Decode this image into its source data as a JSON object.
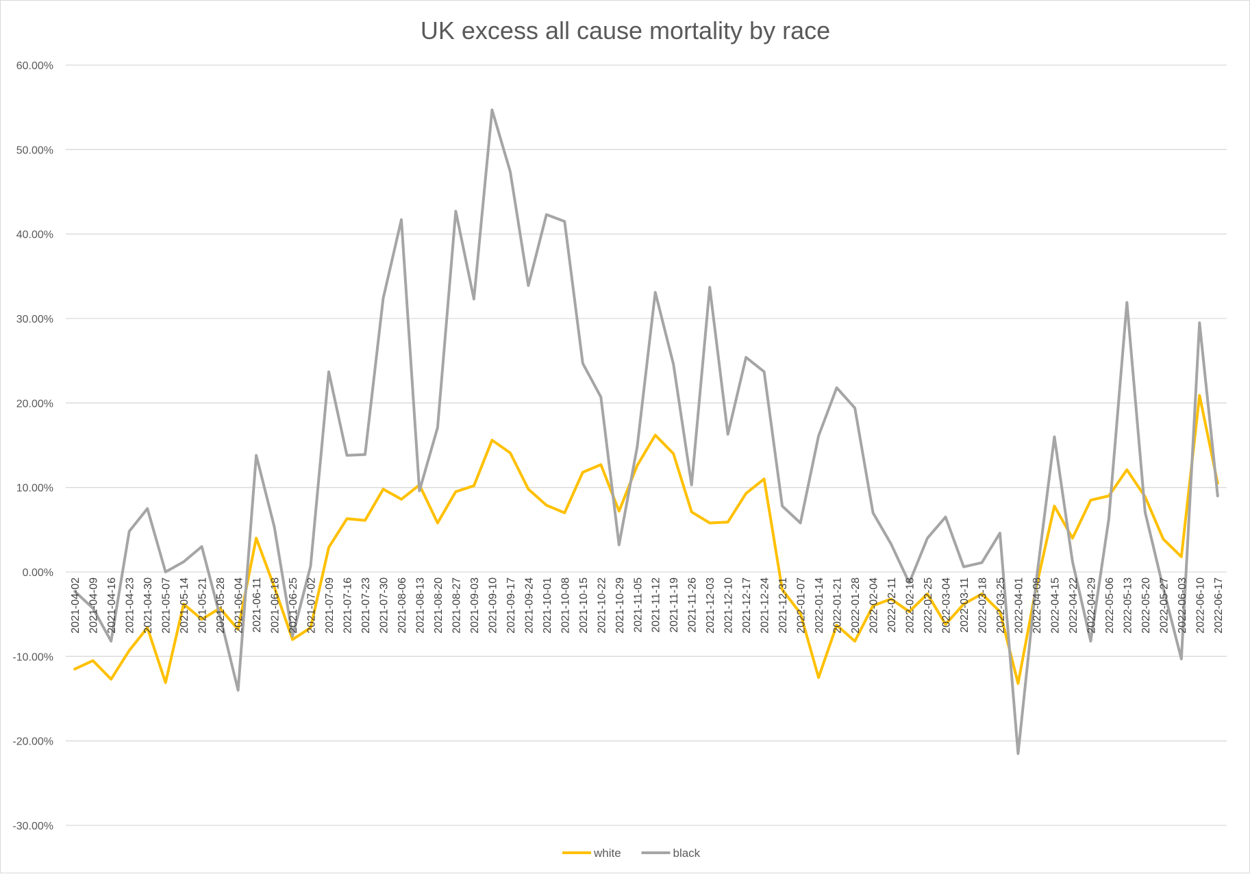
{
  "chart_data": {
    "type": "line",
    "title": "UK excess all cause mortality by race",
    "xlabel": "",
    "ylabel": "",
    "ylim": [
      -30,
      60
    ],
    "yticks": [
      60,
      50,
      40,
      30,
      20,
      10,
      0,
      -10,
      -20,
      -30
    ],
    "ytick_labels": [
      "60.00%",
      "50.00%",
      "40.00%",
      "30.00%",
      "20.00%",
      "10.00%",
      "0.00%",
      "-10.00%",
      "-20.00%",
      "-30.00%"
    ],
    "grid": true,
    "legend_position": "bottom",
    "categories": [
      "2021-04-02",
      "2021-04-09",
      "2021-04-16",
      "2021-04-23",
      "2021-04-30",
      "2021-05-07",
      "2021-05-14",
      "2021-05-21",
      "2021-05-28",
      "2021-06-04",
      "2021-06-11",
      "2021-06-18",
      "2021-06-25",
      "2021-07-02",
      "2021-07-09",
      "2021-07-16",
      "2021-07-23",
      "2021-07-30",
      "2021-08-06",
      "2021-08-13",
      "2021-08-20",
      "2021-08-27",
      "2021-09-03",
      "2021-09-10",
      "2021-09-17",
      "2021-09-24",
      "2021-10-01",
      "2021-10-08",
      "2021-10-15",
      "2021-10-22",
      "2021-10-29",
      "2021-11-05",
      "2021-11-12",
      "2021-11-19",
      "2021-11-26",
      "2021-12-03",
      "2021-12-10",
      "2021-12-17",
      "2021-12-24",
      "2021-12-31",
      "2022-01-07",
      "2022-01-14",
      "2022-01-21",
      "2022-01-28",
      "2022-02-04",
      "2022-02-11",
      "2022-02-18",
      "2022-02-25",
      "2022-03-04",
      "2022-03-11",
      "2022-03-18",
      "2022-03-25",
      "2022-04-01",
      "2022-04-08",
      "2022-04-15",
      "2022-04-22",
      "2022-04-29",
      "2022-05-06",
      "2022-05-13",
      "2022-05-20",
      "2022-05-27",
      "2022-06-03",
      "2022-06-10",
      "2022-06-17"
    ],
    "series": [
      {
        "name": "white",
        "color": "#ffc000",
        "values": [
          -11.5,
          -10.5,
          -12.7,
          -9.3,
          -6.6,
          -13.1,
          -3.8,
          -5.6,
          -4.3,
          -6.8,
          4.0,
          -1.8,
          -8.0,
          -6.6,
          2.9,
          6.3,
          6.1,
          9.8,
          8.6,
          10.3,
          5.8,
          9.5,
          10.2,
          15.6,
          14.1,
          9.8,
          7.9,
          7.0,
          11.8,
          12.7,
          7.2,
          12.6,
          16.2,
          14.0,
          7.1,
          5.8,
          5.9,
          9.3,
          11.0,
          -2.1,
          -4.9,
          -12.5,
          -6.3,
          -8.2,
          -4.0,
          -3.2,
          -4.7,
          -2.6,
          -6.2,
          -3.8,
          -2.6,
          -4.7,
          -13.2,
          -1.8,
          7.8,
          4.0,
          8.5,
          9.0,
          12.1,
          8.9,
          3.9,
          1.8,
          20.9,
          10.5
        ]
      },
      {
        "name": "black",
        "color": "#a5a5a5",
        "values": [
          -2.3,
          -4.3,
          -8.2,
          4.8,
          7.5,
          0.0,
          1.2,
          3.0,
          -5.2,
          -14.0,
          13.8,
          5.3,
          -7.6,
          0.7,
          23.7,
          13.8,
          13.9,
          32.4,
          41.7,
          9.6,
          17.1,
          42.7,
          32.3,
          54.7,
          47.4,
          33.9,
          42.3,
          41.5,
          24.7,
          20.7,
          3.2,
          14.8,
          33.1,
          24.6,
          10.3,
          33.7,
          16.3,
          25.4,
          23.7,
          7.8,
          5.8,
          16.1,
          21.8,
          19.4,
          7.0,
          3.3,
          -1.3,
          4.0,
          6.5,
          0.6,
          1.1,
          4.6,
          -21.5,
          -1.1,
          16.0,
          1.2,
          -8.2,
          6.3,
          31.9,
          7.1,
          -1.9,
          -10.3,
          29.5,
          9.0
        ]
      }
    ]
  }
}
